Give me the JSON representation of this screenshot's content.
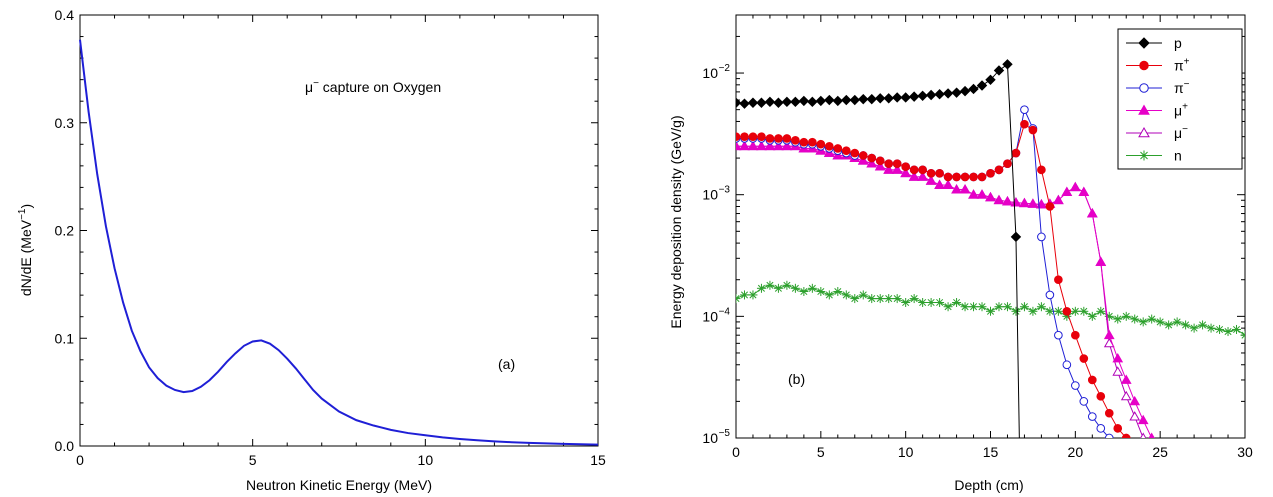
{
  "chart_data": [
    {
      "type": "line",
      "xlabel": "Neutron Kinetic Energy (MeV)",
      "ylabel": "dN/dE (MeV",
      "ylabel_sup": "−1",
      "ylabel_tail": ")",
      "annotation_main": "μ",
      "annotation_sup": "−",
      "annotation_rest": " capture on Oxygen",
      "panel_label": "(a)",
      "xlim": [
        0,
        15
      ],
      "ylim": [
        0,
        0.4
      ],
      "xticks": [
        0,
        5,
        10,
        15
      ],
      "xtick_labels": [
        "0",
        "5",
        "10",
        "15"
      ],
      "yticks": [
        0.0,
        0.1,
        0.2,
        0.3,
        0.4
      ],
      "ytick_labels": [
        "0.0",
        "0.1",
        "0.2",
        "0.3",
        "0.4"
      ],
      "grid": false,
      "line_color": "#1f1fd6",
      "x": [
        0,
        0.25,
        0.5,
        0.75,
        1.0,
        1.25,
        1.5,
        1.75,
        2.0,
        2.25,
        2.5,
        2.75,
        3.0,
        3.25,
        3.5,
        3.75,
        4.0,
        4.25,
        4.5,
        4.75,
        5.0,
        5.25,
        5.5,
        5.75,
        6.0,
        6.25,
        6.5,
        6.75,
        7.0,
        7.5,
        8.0,
        8.5,
        9.0,
        9.5,
        10.0,
        10.5,
        11.0,
        11.5,
        12.0,
        12.5,
        13.0,
        13.5,
        14.0,
        14.5,
        15.0
      ],
      "y": [
        0.377,
        0.31,
        0.252,
        0.204,
        0.165,
        0.133,
        0.107,
        0.088,
        0.073,
        0.063,
        0.056,
        0.052,
        0.05,
        0.051,
        0.055,
        0.061,
        0.069,
        0.078,
        0.086,
        0.093,
        0.097,
        0.098,
        0.095,
        0.089,
        0.081,
        0.072,
        0.062,
        0.052,
        0.044,
        0.032,
        0.024,
        0.019,
        0.015,
        0.012,
        0.01,
        0.008,
        0.0065,
        0.0053,
        0.0043,
        0.0035,
        0.0029,
        0.0024,
        0.002,
        0.0016,
        0.0013
      ]
    },
    {
      "type": "line",
      "xlabel": "Depth (cm)",
      "ylabel": "Energy deposition density (GeV/g)",
      "panel_label": "(b)",
      "xlim": [
        0,
        30
      ],
      "ylim": [
        1e-05,
        0.03
      ],
      "y_scale": "log",
      "xticks": [
        0,
        5,
        10,
        15,
        20,
        25,
        30
      ],
      "xtick_labels": [
        "0",
        "5",
        "10",
        "15",
        "20",
        "25",
        "30"
      ],
      "yticks": [
        -5,
        -4,
        -3,
        -2
      ],
      "ytick_base": "10",
      "ytick_exponents": [
        "−5",
        "−4",
        "−3",
        "−2"
      ],
      "grid": false,
      "legend_position": "top-right",
      "series": [
        {
          "name": "p",
          "name_sup": "",
          "color": "#000000",
          "marker": "diamond",
          "filled": true,
          "x": [
            0,
            0.5,
            1,
            1.5,
            2,
            2.5,
            3,
            3.5,
            4,
            4.5,
            5,
            5.5,
            6,
            6.5,
            7,
            7.5,
            8,
            8.5,
            9,
            9.5,
            10,
            10.5,
            11,
            11.5,
            12,
            12.5,
            13,
            13.5,
            14,
            14.5,
            15,
            15.5,
            16,
            16.5
          ],
          "y": [
            0.0057,
            0.0056,
            0.0057,
            0.0057,
            0.0058,
            0.0057,
            0.0058,
            0.0058,
            0.0059,
            0.0058,
            0.0059,
            0.006,
            0.0059,
            0.006,
            0.006,
            0.0061,
            0.0061,
            0.0062,
            0.0062,
            0.0063,
            0.0063,
            0.0064,
            0.0065,
            0.0066,
            0.0067,
            0.0068,
            0.0069,
            0.0071,
            0.0074,
            0.0079,
            0.0088,
            0.0105,
            0.0118,
            0.00045
          ],
          "extend_x": 16.7,
          "extend_y": 1e-05
        },
        {
          "name": "π",
          "name_sup": "+",
          "color": "#e8000b",
          "marker": "circle",
          "filled": true,
          "x": [
            0,
            0.5,
            1,
            1.5,
            2,
            2.5,
            3,
            3.5,
            4,
            4.5,
            5,
            5.5,
            6,
            6.5,
            7,
            7.5,
            8,
            8.5,
            9,
            9.5,
            10,
            10.5,
            11,
            11.5,
            12,
            12.5,
            13,
            13.5,
            14,
            14.5,
            15,
            15.5,
            16,
            16.5,
            17,
            17.5,
            18,
            18.5,
            19,
            19.5,
            20,
            20.5,
            21,
            21.5,
            22,
            22.5,
            23
          ],
          "y": [
            0.003,
            0.003,
            0.003,
            0.003,
            0.0029,
            0.0029,
            0.0029,
            0.0028,
            0.0027,
            0.0027,
            0.0026,
            0.0025,
            0.0024,
            0.0023,
            0.0022,
            0.0021,
            0.002,
            0.0019,
            0.0018,
            0.0018,
            0.0017,
            0.0016,
            0.0016,
            0.0015,
            0.0015,
            0.0014,
            0.0014,
            0.0014,
            0.0014,
            0.0014,
            0.0015,
            0.0016,
            0.0018,
            0.0022,
            0.0038,
            0.0034,
            0.0016,
            0.0008,
            0.0002,
            0.00011,
            7e-05,
            4.5e-05,
            3e-05,
            2.2e-05,
            1.6e-05,
            1.2e-05,
            1e-05
          ]
        },
        {
          "name": "π",
          "name_sup": "−",
          "color": "#1f1fd6",
          "marker": "circle",
          "filled": false,
          "x": [
            0,
            0.5,
            1,
            1.5,
            2,
            2.5,
            3,
            3.5,
            4,
            4.5,
            5,
            5.5,
            6,
            6.5,
            7,
            7.5,
            8,
            8.5,
            9,
            9.5,
            10,
            10.5,
            11,
            11.5,
            12,
            12.5,
            13,
            13.5,
            14,
            14.5,
            15,
            15.5,
            16,
            16.5,
            17,
            17.5,
            18,
            18.5,
            19,
            19.5,
            20,
            20.5,
            21,
            21.5,
            22
          ],
          "y": [
            0.0029,
            0.0029,
            0.0029,
            0.0029,
            0.0028,
            0.0028,
            0.0028,
            0.0027,
            0.0026,
            0.0026,
            0.0025,
            0.0024,
            0.0023,
            0.0022,
            0.0021,
            0.0021,
            0.002,
            0.0019,
            0.0018,
            0.0018,
            0.0017,
            0.0016,
            0.0016,
            0.0015,
            0.0015,
            0.0014,
            0.0014,
            0.0014,
            0.0014,
            0.0014,
            0.0015,
            0.0016,
            0.0018,
            0.0022,
            0.005,
            0.0035,
            0.00045,
            0.00015,
            7e-05,
            4e-05,
            2.7e-05,
            2e-05,
            1.5e-05,
            1.2e-05,
            1e-05
          ]
        },
        {
          "name": "μ",
          "name_sup": "+",
          "color": "#e600c7",
          "marker": "triangle",
          "filled": true,
          "x": [
            0,
            0.5,
            1,
            1.5,
            2,
            2.5,
            3,
            3.5,
            4,
            4.5,
            5,
            5.5,
            6,
            6.5,
            7,
            7.5,
            8,
            8.5,
            9,
            9.5,
            10,
            10.5,
            11,
            11.5,
            12,
            12.5,
            13,
            13.5,
            14,
            14.5,
            15,
            15.5,
            16,
            16.5,
            17,
            17.5,
            18,
            18.5,
            19,
            19.5,
            20,
            20.5,
            21,
            21.5,
            22,
            22.5,
            23,
            23.5,
            24,
            24.5
          ],
          "y": [
            0.0025,
            0.0025,
            0.0025,
            0.0025,
            0.0025,
            0.0025,
            0.0025,
            0.0025,
            0.0024,
            0.0024,
            0.0023,
            0.0022,
            0.0021,
            0.0021,
            0.002,
            0.0019,
            0.0018,
            0.0017,
            0.0016,
            0.0016,
            0.0015,
            0.0014,
            0.0014,
            0.0013,
            0.0012,
            0.0012,
            0.0011,
            0.0011,
            0.001,
            0.001,
            0.00095,
            0.0009,
            0.00088,
            0.00086,
            0.00085,
            0.00084,
            0.00083,
            0.00084,
            0.0009,
            0.00105,
            0.00115,
            0.00105,
            0.0007,
            0.00028,
            7e-05,
            4.5e-05,
            3e-05,
            2e-05,
            1.4e-05,
            1e-05
          ]
        },
        {
          "name": "μ",
          "name_sup": "−",
          "color": "#b000b8",
          "marker": "triangle",
          "filled": false,
          "x": [
            0,
            0.5,
            1,
            1.5,
            2,
            2.5,
            3,
            3.5,
            4,
            4.5,
            5,
            5.5,
            6,
            6.5,
            7,
            7.5,
            8,
            8.5,
            9,
            9.5,
            10,
            10.5,
            11,
            11.5,
            12,
            12.5,
            13,
            13.5,
            14,
            14.5,
            15,
            15.5,
            16,
            16.5,
            17,
            17.5,
            18,
            18.5,
            19,
            19.5,
            20,
            20.5,
            21,
            21.5,
            22,
            22.5,
            23,
            23.5,
            24
          ],
          "y": [
            0.0025,
            0.0025,
            0.0025,
            0.0025,
            0.0025,
            0.0025,
            0.0025,
            0.0025,
            0.0024,
            0.0024,
            0.0023,
            0.0022,
            0.0021,
            0.0021,
            0.002,
            0.0019,
            0.0018,
            0.0017,
            0.0016,
            0.0016,
            0.0015,
            0.0014,
            0.0014,
            0.0013,
            0.0012,
            0.0012,
            0.0011,
            0.0011,
            0.001,
            0.001,
            0.00095,
            0.0009,
            0.00088,
            0.00086,
            0.00085,
            0.00084,
            0.00083,
            0.00084,
            0.0009,
            0.00105,
            0.00115,
            0.00105,
            0.0007,
            0.00028,
            6e-05,
            3.5e-05,
            2.2e-05,
            1.5e-05,
            1e-05
          ]
        },
        {
          "name": "n",
          "name_sup": "",
          "color": "#2ca02c",
          "marker": "star",
          "filled": false,
          "x": [
            0,
            0.5,
            1,
            1.5,
            2,
            2.5,
            3,
            3.5,
            4,
            4.5,
            5,
            5.5,
            6,
            6.5,
            7,
            7.5,
            8,
            8.5,
            9,
            9.5,
            10,
            10.5,
            11,
            11.5,
            12,
            12.5,
            13,
            13.5,
            14,
            14.5,
            15,
            15.5,
            16,
            16.5,
            17,
            17.5,
            18,
            18.5,
            19,
            19.5,
            20,
            20.5,
            21,
            21.5,
            22,
            22.5,
            23,
            23.5,
            24,
            24.5,
            25,
            25.5,
            26,
            26.5,
            27,
            27.5,
            28,
            28.5,
            29,
            29.5,
            30
          ],
          "y": [
            0.00014,
            0.00015,
            0.00015,
            0.00017,
            0.00018,
            0.00017,
            0.00018,
            0.00017,
            0.00016,
            0.00017,
            0.00016,
            0.00015,
            0.00016,
            0.00015,
            0.00014,
            0.00015,
            0.00014,
            0.00014,
            0.00014,
            0.00014,
            0.00013,
            0.00014,
            0.00013,
            0.00013,
            0.00013,
            0.00012,
            0.00013,
            0.00012,
            0.00012,
            0.00012,
            0.00011,
            0.00012,
            0.00012,
            0.00011,
            0.00012,
            0.00011,
            0.00012,
            0.00011,
            0.00011,
            0.0001,
            0.00011,
            0.00011,
            0.0001,
            0.00011,
            0.0001,
            9.5e-05,
            0.0001,
            9.5e-05,
            9e-05,
            9.5e-05,
            9e-05,
            8.5e-05,
            9e-05,
            8.5e-05,
            8e-05,
            8.5e-05,
            8e-05,
            7.8e-05,
            7.5e-05,
            7.8e-05,
            7e-05
          ]
        }
      ]
    }
  ]
}
